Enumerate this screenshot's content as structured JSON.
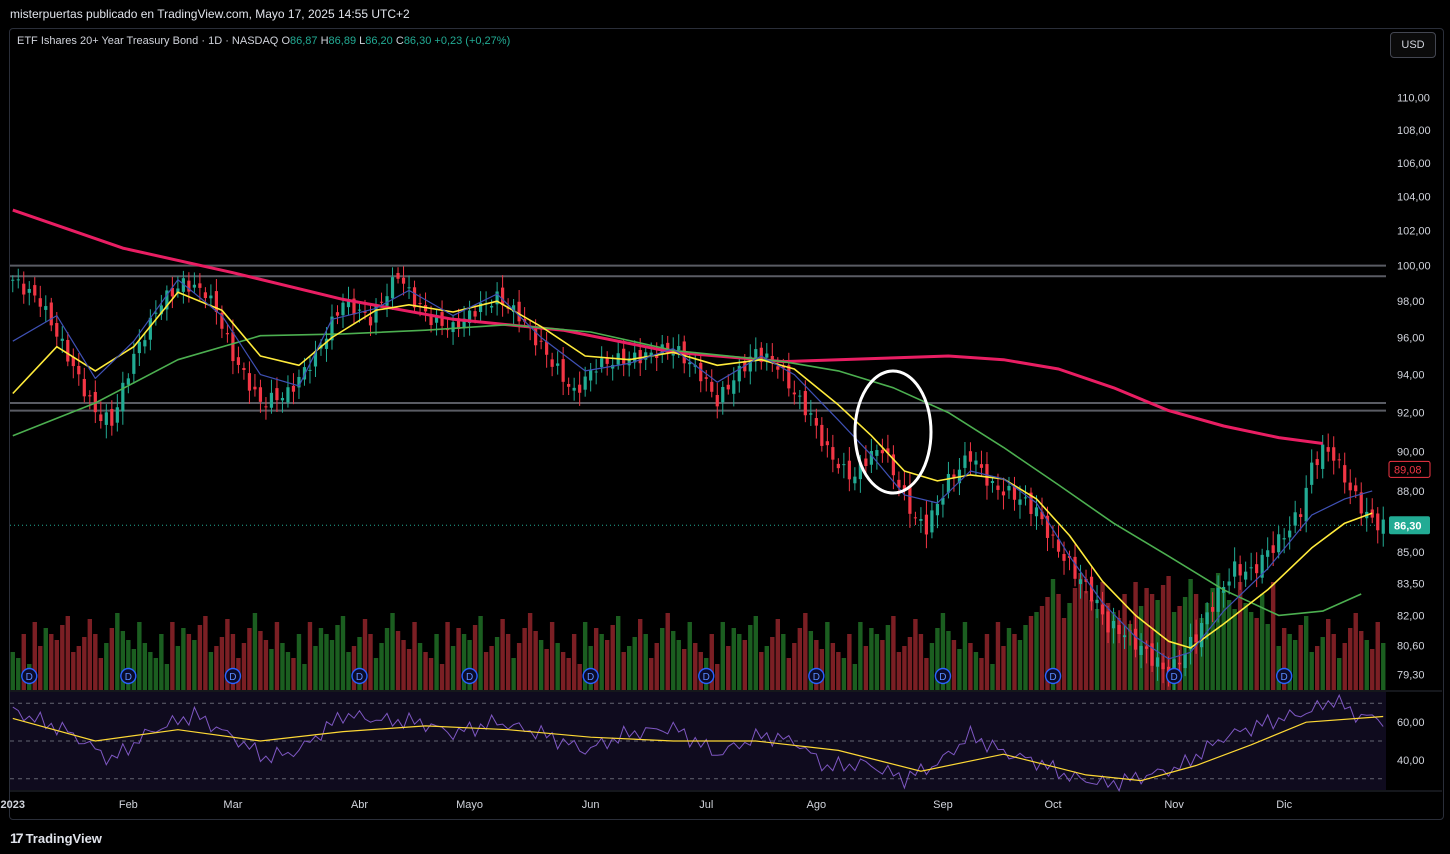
{
  "header": {
    "publisher_line": "misterpuertas publicado en TradingView.com, Mayo 17, 2025 14:55 UTC+2"
  },
  "legend": {
    "symbol": "ETF Ishares 20+ Year Treasury Bond · 1D · NASDAQ",
    "open_label": "O",
    "open": "86,87",
    "high_label": "H",
    "high": "86,89",
    "low_label": "L",
    "low": "86,20",
    "close_label": "C",
    "close": "86,30",
    "change": "+0,23 (+0,27%)"
  },
  "currency_button": "USD",
  "footer": {
    "logo_text": "TradingView",
    "logo_mark": "17"
  },
  "colors": {
    "bull": "#22ab94",
    "bear": "#f23645",
    "vol_bull": "#1b5e20",
    "vol_bear": "#7b1f24",
    "sma200": "#e91e63",
    "sma50": "#4caf50",
    "ema20": "#ffeb3b",
    "ema9": "#3f51b5",
    "rsi": "#7e57c2",
    "rsi_ma": "#fdd835",
    "hline": "#787b86"
  },
  "chart_data": {
    "type": "candlestick",
    "price_axis": {
      "ticks": [
        "110,00",
        "108,00",
        "106,00",
        "104,00",
        "102,00",
        "100,00",
        "98,00",
        "96,00",
        "94,00",
        "92,00",
        "90,00",
        "88,00",
        "86,30",
        "85,00",
        "83,50",
        "82,00",
        "80,60",
        "79,30"
      ],
      "scale": "log",
      "range": [
        78.6,
        112.5
      ]
    },
    "time_axis": [
      "2023",
      "Feb",
      "Mar",
      "Abr",
      "Mayo",
      "Jun",
      "Jul",
      "Ago",
      "Sep",
      "Oct",
      "Nov",
      "Dic"
    ],
    "month_starts_day_index": [
      0,
      21,
      40,
      63,
      83,
      105,
      126,
      146,
      169,
      189,
      211,
      231
    ],
    "total_days": 250,
    "price_labels": {
      "last": "86,30",
      "sma200_value": "89,08"
    },
    "horizontal_levels": [
      100.0,
      99.4,
      92.5,
      92.1
    ],
    "price_path": [
      [
        0,
        99.2
      ],
      [
        5,
        98.0
      ],
      [
        10,
        95.0
      ],
      [
        15,
        92.0
      ],
      [
        18,
        91.5
      ],
      [
        22,
        95.0
      ],
      [
        27,
        98.0
      ],
      [
        31,
        99.0
      ],
      [
        35,
        98.5
      ],
      [
        37,
        97.5
      ],
      [
        40,
        95.0
      ],
      [
        45,
        92.5
      ],
      [
        50,
        93.0
      ],
      [
        55,
        95.0
      ],
      [
        60,
        98.0
      ],
      [
        65,
        97.0
      ],
      [
        70,
        99.5
      ],
      [
        73,
        98.0
      ],
      [
        76,
        97.0
      ],
      [
        80,
        96.5
      ],
      [
        84,
        97.5
      ],
      [
        88,
        98.2
      ],
      [
        92,
        97.2
      ],
      [
        96,
        95.5
      ],
      [
        102,
        93.0
      ],
      [
        106,
        94.5
      ],
      [
        110,
        94.8
      ],
      [
        115,
        95.0
      ],
      [
        120,
        95.5
      ],
      [
        125,
        94.0
      ],
      [
        128,
        92.6
      ],
      [
        131,
        93.8
      ],
      [
        135,
        95.2
      ],
      [
        139,
        94.5
      ],
      [
        142,
        93.0
      ],
      [
        145,
        91.8
      ],
      [
        148,
        90.0
      ],
      [
        151,
        89.0
      ],
      [
        153,
        88.7
      ],
      [
        155,
        89.6
      ],
      [
        158,
        90.2
      ],
      [
        161,
        88.3
      ],
      [
        164,
        86.6
      ],
      [
        166,
        86.2
      ],
      [
        170,
        88.5
      ],
      [
        174,
        89.8
      ],
      [
        178,
        88.2
      ],
      [
        182,
        87.8
      ],
      [
        186,
        87.0
      ],
      [
        189,
        85.5
      ],
      [
        193,
        84.0
      ],
      [
        196,
        83.0
      ],
      [
        199,
        81.5
      ],
      [
        202,
        81.2
      ],
      [
        205,
        80.5
      ],
      [
        208,
        79.8
      ],
      [
        210,
        79.3
      ],
      [
        213,
        80.3
      ],
      [
        216,
        81.5
      ],
      [
        219,
        83.0
      ],
      [
        222,
        84.2
      ],
      [
        225,
        84.0
      ],
      [
        228,
        85.0
      ],
      [
        231,
        85.8
      ],
      [
        234,
        87.0
      ],
      [
        236,
        89.2
      ],
      [
        238,
        90.1
      ],
      [
        240,
        89.8
      ],
      [
        242,
        88.6
      ],
      [
        245,
        87.2
      ],
      [
        247,
        86.5
      ],
      [
        249,
        86.3
      ]
    ],
    "moving_averages": [
      {
        "id": "sma200",
        "points": [
          [
            0,
            103.2
          ],
          [
            20,
            101.0
          ],
          [
            40,
            99.6
          ],
          [
            60,
            98.1
          ],
          [
            80,
            97.0
          ],
          [
            100,
            96.4
          ],
          [
            120,
            95.2
          ],
          [
            140,
            94.7
          ],
          [
            160,
            94.9
          ],
          [
            170,
            95.0
          ],
          [
            180,
            94.8
          ],
          [
            190,
            94.3
          ],
          [
            200,
            93.3
          ],
          [
            210,
            92.1
          ],
          [
            220,
            91.3
          ],
          [
            230,
            90.7
          ],
          [
            238,
            90.4
          ]
        ]
      },
      {
        "id": "sma50",
        "points": [
          [
            0,
            90.8
          ],
          [
            15,
            92.5
          ],
          [
            30,
            94.8
          ],
          [
            45,
            96.1
          ],
          [
            60,
            96.2
          ],
          [
            75,
            96.4
          ],
          [
            90,
            96.7
          ],
          [
            105,
            96.3
          ],
          [
            120,
            95.3
          ],
          [
            140,
            94.7
          ],
          [
            150,
            94.2
          ],
          [
            160,
            93.3
          ],
          [
            170,
            92.0
          ],
          [
            180,
            90.2
          ],
          [
            190,
            88.3
          ],
          [
            200,
            86.4
          ],
          [
            210,
            84.8
          ],
          [
            220,
            83.2
          ],
          [
            230,
            82.0
          ],
          [
            238,
            82.2
          ],
          [
            245,
            83.0
          ]
        ]
      },
      {
        "id": "ema20",
        "points": [
          [
            0,
            93.0
          ],
          [
            8,
            95.5
          ],
          [
            15,
            94.2
          ],
          [
            22,
            95.5
          ],
          [
            30,
            98.5
          ],
          [
            38,
            97.5
          ],
          [
            45,
            95.0
          ],
          [
            52,
            94.5
          ],
          [
            58,
            96.0
          ],
          [
            66,
            97.5
          ],
          [
            72,
            97.8
          ],
          [
            80,
            97.4
          ],
          [
            88,
            98.0
          ],
          [
            96,
            96.6
          ],
          [
            104,
            95.0
          ],
          [
            112,
            94.8
          ],
          [
            120,
            95.2
          ],
          [
            128,
            94.5
          ],
          [
            136,
            94.8
          ],
          [
            142,
            94.3
          ],
          [
            150,
            92.4
          ],
          [
            156,
            90.8
          ],
          [
            162,
            89.0
          ],
          [
            168,
            88.5
          ],
          [
            174,
            88.8
          ],
          [
            180,
            88.6
          ],
          [
            186,
            87.6
          ],
          [
            192,
            85.8
          ],
          [
            198,
            83.6
          ],
          [
            204,
            82.0
          ],
          [
            210,
            80.8
          ],
          [
            214,
            80.5
          ],
          [
            220,
            81.6
          ],
          [
            228,
            83.2
          ],
          [
            236,
            85.2
          ],
          [
            242,
            86.4
          ],
          [
            247,
            86.9
          ]
        ]
      },
      {
        "id": "ema9",
        "points": [
          [
            0,
            95.8
          ],
          [
            8,
            97.2
          ],
          [
            15,
            93.8
          ],
          [
            22,
            95.8
          ],
          [
            30,
            99.2
          ],
          [
            38,
            97.2
          ],
          [
            45,
            94.0
          ],
          [
            52,
            93.4
          ],
          [
            58,
            97.0
          ],
          [
            66,
            97.6
          ],
          [
            72,
            98.6
          ],
          [
            80,
            97.2
          ],
          [
            88,
            98.4
          ],
          [
            96,
            96.0
          ],
          [
            104,
            94.2
          ],
          [
            112,
            94.6
          ],
          [
            120,
            95.4
          ],
          [
            128,
            93.6
          ],
          [
            136,
            95.0
          ],
          [
            142,
            94.0
          ],
          [
            150,
            91.6
          ],
          [
            156,
            89.8
          ],
          [
            162,
            87.8
          ],
          [
            168,
            87.4
          ],
          [
            174,
            89.0
          ],
          [
            180,
            88.6
          ],
          [
            186,
            87.4
          ],
          [
            192,
            84.8
          ],
          [
            198,
            82.6
          ],
          [
            204,
            81.0
          ],
          [
            210,
            80.0
          ],
          [
            214,
            80.3
          ],
          [
            220,
            82.2
          ],
          [
            228,
            84.2
          ],
          [
            236,
            86.8
          ],
          [
            242,
            87.6
          ],
          [
            247,
            88.0
          ]
        ]
      }
    ],
    "dividend_markers_day_index": [
      3,
      21,
      40,
      63,
      83,
      105,
      126,
      146,
      169,
      189,
      211,
      231
    ],
    "volume": {
      "max_value": 100,
      "heights": [
        30,
        20,
        60,
        10,
        80,
        40,
        70,
        60,
        50,
        75,
        90,
        30,
        40,
        55,
        85,
        60,
        20,
        45,
        70,
        95,
        65,
        50,
        35,
        80,
        45
      ]
    },
    "rsi": {
      "levels": [
        70,
        50,
        30
      ],
      "ticks": [
        "60,00",
        "40,00"
      ],
      "range": [
        24,
        76
      ],
      "path": [
        [
          0,
          66
        ],
        [
          10,
          55
        ],
        [
          18,
          40
        ],
        [
          25,
          55
        ],
        [
          33,
          64
        ],
        [
          40,
          52
        ],
        [
          46,
          41
        ],
        [
          52,
          45
        ],
        [
          60,
          64
        ],
        [
          67,
          61
        ],
        [
          74,
          60
        ],
        [
          80,
          54
        ],
        [
          88,
          60
        ],
        [
          96,
          54
        ],
        [
          104,
          45
        ],
        [
          112,
          54
        ],
        [
          120,
          57
        ],
        [
          128,
          43
        ],
        [
          136,
          53
        ],
        [
          142,
          50
        ],
        [
          148,
          36
        ],
        [
          155,
          38
        ],
        [
          162,
          30
        ],
        [
          168,
          38
        ],
        [
          174,
          53
        ],
        [
          180,
          44
        ],
        [
          186,
          39
        ],
        [
          192,
          31
        ],
        [
          199,
          27
        ],
        [
          205,
          31
        ],
        [
          212,
          36
        ],
        [
          220,
          52
        ],
        [
          228,
          60
        ],
        [
          236,
          66
        ],
        [
          240,
          72
        ],
        [
          244,
          64
        ],
        [
          249,
          61
        ]
      ],
      "ma_path": [
        [
          0,
          62
        ],
        [
          15,
          50
        ],
        [
          30,
          56
        ],
        [
          45,
          50
        ],
        [
          60,
          55
        ],
        [
          75,
          58
        ],
        [
          90,
          56
        ],
        [
          105,
          52
        ],
        [
          120,
          50
        ],
        [
          135,
          50
        ],
        [
          150,
          45
        ],
        [
          165,
          34
        ],
        [
          180,
          43
        ],
        [
          195,
          32
        ],
        [
          205,
          29
        ],
        [
          215,
          37
        ],
        [
          225,
          48
        ],
        [
          235,
          60
        ],
        [
          249,
          63
        ]
      ]
    }
  }
}
